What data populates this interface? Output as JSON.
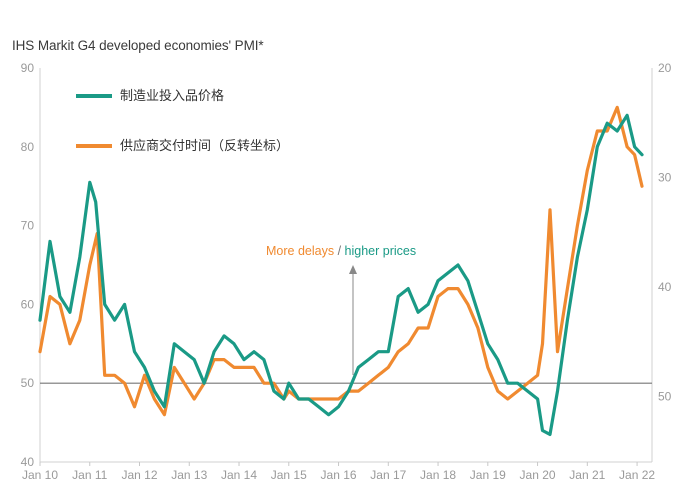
{
  "chart_data": {
    "type": "line",
    "title": "IHS Markit  G4 developed economies' PMI*",
    "left_axis": {
      "ylim": [
        40,
        90
      ],
      "ticks": [
        40,
        50,
        60,
        70,
        80,
        90
      ]
    },
    "right_axis": {
      "reversed": true,
      "ylim": [
        20,
        56
      ],
      "ticks": [
        "20",
        "30",
        "40",
        "50"
      ]
    },
    "x_tick_labels": [
      "Jan 10",
      "Jan 11",
      "Jan 12",
      "Jan 13",
      "Jan 14",
      "Jan 15",
      "Jan 16",
      "Jan 17",
      "Jan 18",
      "Jan 19",
      "Jan 20",
      "Jan 21",
      "Jan 22"
    ],
    "reference_line": 50,
    "legend_placement": "top-left",
    "annotation": {
      "part1": "More delays",
      "sep": " / ",
      "part2": "higher prices"
    },
    "series": [
      {
        "name": "制造业投入品价格",
        "color": "#1a9a86",
        "axis": "left",
        "x": [
          2010.0,
          2010.2,
          2010.4,
          2010.6,
          2010.8,
          2011.0,
          2011.12,
          2011.3,
          2011.5,
          2011.7,
          2011.9,
          2012.1,
          2012.3,
          2012.5,
          2012.7,
          2012.9,
          2013.1,
          2013.3,
          2013.5,
          2013.7,
          2013.9,
          2014.1,
          2014.3,
          2014.5,
          2014.7,
          2014.9,
          2015.0,
          2015.2,
          2015.4,
          2015.6,
          2015.8,
          2016.0,
          2016.2,
          2016.4,
          2016.6,
          2016.8,
          2017.0,
          2017.2,
          2017.4,
          2017.6,
          2017.8,
          2018.0,
          2018.2,
          2018.4,
          2018.6,
          2018.8,
          2019.0,
          2019.2,
          2019.4,
          2019.6,
          2019.8,
          2020.0,
          2020.1,
          2020.25,
          2020.4,
          2020.6,
          2020.8,
          2021.0,
          2021.2,
          2021.4,
          2021.6,
          2021.8,
          2021.95,
          2022.1
        ],
        "values": [
          58,
          68,
          61,
          59,
          66,
          75.5,
          73,
          60,
          58,
          60,
          54,
          52,
          49,
          47,
          55,
          54,
          53,
          50,
          54,
          56,
          55,
          53,
          54,
          53,
          49,
          48,
          50,
          48,
          48,
          47,
          46,
          47,
          49,
          52,
          53,
          54,
          54,
          61,
          62,
          59,
          60,
          63,
          64,
          65,
          63,
          59,
          55,
          53,
          50,
          50,
          49,
          48,
          44,
          43.5,
          49,
          58,
          66,
          72,
          80,
          83,
          82,
          84,
          80,
          79
        ]
      },
      {
        "name": "供应商交付时间（反转坐标）",
        "color": "#f08a30",
        "axis": "left",
        "x": [
          2010.0,
          2010.2,
          2010.4,
          2010.6,
          2010.8,
          2011.0,
          2011.15,
          2011.3,
          2011.5,
          2011.7,
          2011.9,
          2012.1,
          2012.3,
          2012.5,
          2012.7,
          2012.9,
          2013.1,
          2013.3,
          2013.5,
          2013.7,
          2013.9,
          2014.1,
          2014.3,
          2014.5,
          2014.7,
          2014.9,
          2015.0,
          2015.2,
          2015.4,
          2015.6,
          2015.8,
          2016.0,
          2016.2,
          2016.4,
          2016.6,
          2016.8,
          2017.0,
          2017.2,
          2017.4,
          2017.6,
          2017.8,
          2018.0,
          2018.2,
          2018.4,
          2018.6,
          2018.8,
          2019.0,
          2019.2,
          2019.4,
          2019.6,
          2019.8,
          2020.0,
          2020.1,
          2020.25,
          2020.4,
          2020.6,
          2020.8,
          2021.0,
          2021.2,
          2021.4,
          2021.6,
          2021.8,
          2021.95,
          2022.1
        ],
        "values": [
          54,
          61,
          60,
          55,
          58,
          65,
          69,
          51,
          51,
          50,
          47,
          51,
          48,
          46,
          52,
          50,
          48,
          50,
          53,
          53,
          52,
          52,
          52,
          50,
          50,
          48,
          49,
          48,
          48,
          48,
          48,
          48,
          49,
          49,
          50,
          51,
          52,
          54,
          55,
          57,
          57,
          61,
          62,
          62,
          60,
          57,
          52,
          49,
          48,
          49,
          50,
          51,
          55,
          72,
          54,
          62,
          70,
          77,
          82,
          82,
          85,
          80,
          79,
          75
        ]
      }
    ]
  }
}
